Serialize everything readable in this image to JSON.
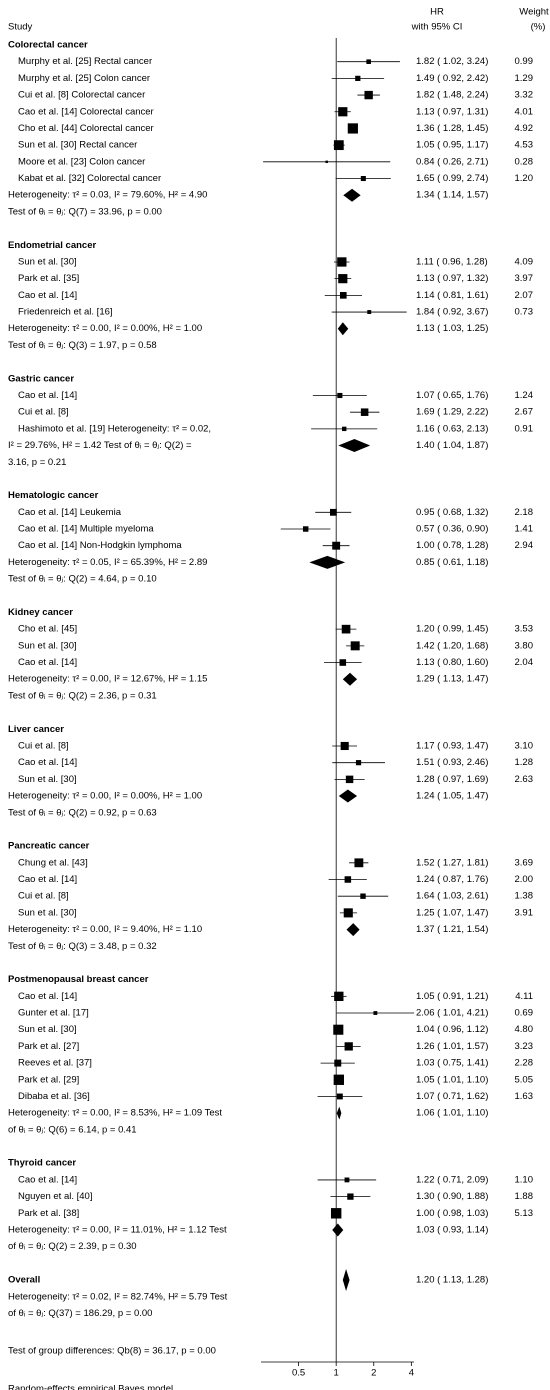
{
  "chart_data": {
    "type": "forest",
    "header": {
      "study": "Study",
      "estimate": [
        "HR",
        "with 95% CI"
      ],
      "weight": [
        "Weight",
        "(%)"
      ]
    },
    "xscale": "log",
    "xlim": [
      0.25,
      4.2
    ],
    "xticks": [
      0.5,
      1,
      2,
      4
    ],
    "reference_line": 1,
    "groups": [
      {
        "name": "Colorectal cancer",
        "studies": [
          {
            "study": "Murphy et al. [25] Rectal cancer",
            "hr": 1.82,
            "ci_low": 1.02,
            "ci_high": 3.24,
            "estimate": "1.82 ( 1.02, 3.24)",
            "weight": 0.99,
            "weight_label": "0.99"
          },
          {
            "study": "Murphy et al. [25] Colon cancer",
            "hr": 1.49,
            "ci_low": 0.92,
            "ci_high": 2.42,
            "estimate": "1.49 ( 0.92, 2.42)",
            "weight": 1.29,
            "weight_label": "1.29"
          },
          {
            "study": "Cui et al. [8] Colorectal cancer",
            "hr": 1.82,
            "ci_low": 1.48,
            "ci_high": 2.24,
            "estimate": "1.82 ( 1.48, 2.24)",
            "weight": 3.32,
            "weight_label": "3.32"
          },
          {
            "study": "Cao et al. [14] Colorectal cancer",
            "hr": 1.13,
            "ci_low": 0.97,
            "ci_high": 1.31,
            "estimate": "1.13 ( 0.97, 1.31)",
            "weight": 4.01,
            "weight_label": "4.01"
          },
          {
            "study": "Cho et al. [44] Colorectal cancer",
            "hr": 1.36,
            "ci_low": 1.28,
            "ci_high": 1.45,
            "estimate": "1.36 ( 1.28, 1.45)",
            "weight": 4.92,
            "weight_label": "4.92"
          },
          {
            "study": "Sun et al. [30] Rectal cancer",
            "hr": 1.05,
            "ci_low": 0.95,
            "ci_high": 1.17,
            "estimate": "1.05 ( 0.95, 1.17)",
            "weight": 4.53,
            "weight_label": "4.53"
          },
          {
            "study": "Moore et al. [23] Colon cancer",
            "hr": 0.84,
            "ci_low": 0.26,
            "ci_high": 2.71,
            "estimate": "0.84 ( 0.26, 2.71)",
            "weight": 0.28,
            "weight_label": "0.28"
          },
          {
            "study": "Kabat et al. [32] Colorectal cancer",
            "hr": 1.65,
            "ci_low": 0.99,
            "ci_high": 2.74,
            "estimate": "1.65 ( 0.99, 2.74)",
            "weight": 1.2,
            "weight_label": "1.20"
          }
        ],
        "pooled": {
          "hr": 1.34,
          "ci_low": 1.14,
          "ci_high": 1.57,
          "estimate": "1.34 ( 1.14, 1.57)"
        },
        "notes": [
          "Heterogeneity: τ² = 0.03, I² = 79.60%, H² = 4.90",
          "Test of θᵢ = θⱼ: Q(7) = 33.96, p = 0.00"
        ]
      },
      {
        "name": "Endometrial cancer",
        "studies": [
          {
            "study": "Sun et al. [30]",
            "hr": 1.11,
            "ci_low": 0.96,
            "ci_high": 1.28,
            "estimate": "1.11 ( 0.96, 1.28)",
            "weight": 4.09,
            "weight_label": "4.09"
          },
          {
            "study": "Park et al. [35]",
            "hr": 1.13,
            "ci_low": 0.97,
            "ci_high": 1.32,
            "estimate": "1.13 ( 0.97, 1.32)",
            "weight": 3.97,
            "weight_label": "3.97"
          },
          {
            "study": "Cao et al. [14]",
            "hr": 1.14,
            "ci_low": 0.81,
            "ci_high": 1.61,
            "estimate": "1.14 ( 0.81, 1.61)",
            "weight": 2.07,
            "weight_label": "2.07"
          },
          {
            "study": "Friedenreich et al. [16]",
            "hr": 1.84,
            "ci_low": 0.92,
            "ci_high": 3.67,
            "estimate": "1.84 ( 0.92, 3.67)",
            "weight": 0.73,
            "weight_label": "0.73"
          }
        ],
        "pooled": {
          "hr": 1.13,
          "ci_low": 1.03,
          "ci_high": 1.25,
          "estimate": "1.13 ( 1.03, 1.25)"
        },
        "notes": [
          "Heterogeneity: τ² = 0.00, I² = 0.00%, H² = 1.00",
          "Test of θᵢ = θⱼ: Q(3) = 1.97, p = 0.58"
        ]
      },
      {
        "name": "Gastric cancer",
        "studies": [
          {
            "study": "Cao et al. [14]",
            "hr": 1.07,
            "ci_low": 0.65,
            "ci_high": 1.76,
            "estimate": "1.07 ( 0.65, 1.76)",
            "weight": 1.24,
            "weight_label": "1.24"
          },
          {
            "study": "Cui et al. [8]",
            "hr": 1.69,
            "ci_low": 1.29,
            "ci_high": 2.22,
            "estimate": "1.69 ( 1.29, 2.22)",
            "weight": 2.67,
            "weight_label": "2.67"
          },
          {
            "study": "Hashimoto et al. [19]  Heterogeneity: τ² = 0.02,",
            "hr": 1.16,
            "ci_low": 0.63,
            "ci_high": 2.13,
            "estimate": "1.16 ( 0.63, 2.13)",
            "weight": 0.91,
            "weight_label": "0.91"
          }
        ],
        "pooled": {
          "hr": 1.4,
          "ci_low": 1.04,
          "ci_high": 1.87,
          "estimate": "1.40 ( 1.04, 1.87)"
        },
        "notes": [
          "I² = 29.76%, H² = 1.42 Test of θᵢ = θⱼ: Q(2) =",
          "3.16, p = 0.21"
        ]
      },
      {
        "name": "Hematologic cancer",
        "studies": [
          {
            "study": "Cao et al. [14] Leukemia",
            "hr": 0.95,
            "ci_low": 0.68,
            "ci_high": 1.32,
            "estimate": "0.95 ( 0.68, 1.32)",
            "weight": 2.18,
            "weight_label": "2.18"
          },
          {
            "study": "Cao et al. [14] Multiple myeloma",
            "hr": 0.57,
            "ci_low": 0.36,
            "ci_high": 0.9,
            "estimate": "0.57 ( 0.36, 0.90)",
            "weight": 1.41,
            "weight_label": "1.41"
          },
          {
            "study": "Cao et al. [14] Non-Hodgkin lymphoma",
            "hr": 1.0,
            "ci_low": 0.78,
            "ci_high": 1.28,
            "estimate": "1.00 ( 0.78, 1.28)",
            "weight": 2.94,
            "weight_label": "2.94"
          }
        ],
        "pooled": {
          "hr": 0.85,
          "ci_low": 0.61,
          "ci_high": 1.18,
          "estimate": "0.85 ( 0.61, 1.18)"
        },
        "notes": [
          "Heterogeneity: τ² = 0.05, I² = 65.39%, H² = 2.89",
          "Test of θᵢ = θⱼ: Q(2) = 4.64, p = 0.10"
        ]
      },
      {
        "name": "Kidney cancer",
        "studies": [
          {
            "study": "Cho et al. [45]",
            "hr": 1.2,
            "ci_low": 0.99,
            "ci_high": 1.45,
            "estimate": "1.20 ( 0.99, 1.45)",
            "weight": 3.53,
            "weight_label": "3.53"
          },
          {
            "study": "Sun et al. [30]",
            "hr": 1.42,
            "ci_low": 1.2,
            "ci_high": 1.68,
            "estimate": "1.42 ( 1.20, 1.68)",
            "weight": 3.8,
            "weight_label": "3.80"
          },
          {
            "study": "Cao et al. [14]",
            "hr": 1.13,
            "ci_low": 0.8,
            "ci_high": 1.6,
            "estimate": "1.13 ( 0.80, 1.60)",
            "weight": 2.04,
            "weight_label": "2.04"
          }
        ],
        "pooled": {
          "hr": 1.29,
          "ci_low": 1.13,
          "ci_high": 1.47,
          "estimate": "1.29 ( 1.13, 1.47)"
        },
        "notes": [
          "Heterogeneity: τ² = 0.00, I² = 12.67%, H² = 1.15",
          "Test of θᵢ = θⱼ: Q(2) = 2.36, p = 0.31"
        ]
      },
      {
        "name": "Liver cancer",
        "studies": [
          {
            "study": "Cui et al. [8]",
            "hr": 1.17,
            "ci_low": 0.93,
            "ci_high": 1.47,
            "estimate": "1.17 ( 0.93, 1.47)",
            "weight": 3.1,
            "weight_label": "3.10"
          },
          {
            "study": "Cao et al. [14]",
            "hr": 1.51,
            "ci_low": 0.93,
            "ci_high": 2.46,
            "estimate": "1.51 ( 0.93, 2.46)",
            "weight": 1.28,
            "weight_label": "1.28"
          },
          {
            "study": "Sun et al. [30]",
            "hr": 1.28,
            "ci_low": 0.97,
            "ci_high": 1.69,
            "estimate": "1.28 ( 0.97, 1.69)",
            "weight": 2.63,
            "weight_label": "2.63"
          }
        ],
        "pooled": {
          "hr": 1.24,
          "ci_low": 1.05,
          "ci_high": 1.47,
          "estimate": "1.24 ( 1.05, 1.47)"
        },
        "notes": [
          "Heterogeneity: τ² = 0.00, I² = 0.00%, H² = 1.00",
          "Test of θᵢ = θⱼ: Q(2) = 0.92, p = 0.63"
        ]
      },
      {
        "name": "Pancreatic cancer",
        "studies": [
          {
            "study": "Chung et al. [43]",
            "hr": 1.52,
            "ci_low": 1.27,
            "ci_high": 1.81,
            "estimate": "1.52 ( 1.27, 1.81)",
            "weight": 3.69,
            "weight_label": "3.69"
          },
          {
            "study": "Cao et al. [14]",
            "hr": 1.24,
            "ci_low": 0.87,
            "ci_high": 1.76,
            "estimate": "1.24 ( 0.87, 1.76)",
            "weight": 2.0,
            "weight_label": "2.00"
          },
          {
            "study": "Cui et al. [8]",
            "hr": 1.64,
            "ci_low": 1.03,
            "ci_high": 2.61,
            "estimate": "1.64 ( 1.03, 2.61)",
            "weight": 1.38,
            "weight_label": "1.38"
          },
          {
            "study": "Sun et al. [30]",
            "hr": 1.25,
            "ci_low": 1.07,
            "ci_high": 1.47,
            "estimate": "1.25 ( 1.07, 1.47)",
            "weight": 3.91,
            "weight_label": "3.91"
          }
        ],
        "pooled": {
          "hr": 1.37,
          "ci_low": 1.21,
          "ci_high": 1.54,
          "estimate": "1.37 ( 1.21, 1.54)"
        },
        "notes": [
          "Heterogeneity: τ² = 0.00, I² = 9.40%, H² = 1.10",
          "Test of θᵢ = θⱼ: Q(3) = 3.48, p = 0.32"
        ]
      },
      {
        "name": "Postmenopausal breast cancer",
        "studies": [
          {
            "study": "Cao et al. [14]",
            "hr": 1.05,
            "ci_low": 0.91,
            "ci_high": 1.21,
            "estimate": "1.05 ( 0.91, 1.21)",
            "weight": 4.11,
            "weight_label": "4.11"
          },
          {
            "study": "Gunter et al. [17]",
            "hr": 2.06,
            "ci_low": 1.01,
            "ci_high": 4.21,
            "estimate": "2.06 ( 1.01, 4.21)",
            "weight": 0.69,
            "weight_label": "0.69"
          },
          {
            "study": "Sun et al. [30]",
            "hr": 1.04,
            "ci_low": 0.96,
            "ci_high": 1.12,
            "estimate": "1.04 ( 0.96, 1.12)",
            "weight": 4.8,
            "weight_label": "4.80"
          },
          {
            "study": "Park et al. [27]",
            "hr": 1.26,
            "ci_low": 1.01,
            "ci_high": 1.57,
            "estimate": "1.26 ( 1.01, 1.57)",
            "weight": 3.23,
            "weight_label": "3.23"
          },
          {
            "study": "Reeves et al. [37]",
            "hr": 1.03,
            "ci_low": 0.75,
            "ci_high": 1.41,
            "estimate": "1.03 ( 0.75, 1.41)",
            "weight": 2.28,
            "weight_label": "2.28"
          },
          {
            "study": "Park et al. [29]",
            "hr": 1.05,
            "ci_low": 1.01,
            "ci_high": 1.1,
            "estimate": "1.05 ( 1.01, 1.10)",
            "weight": 5.05,
            "weight_label": "5.05"
          },
          {
            "study": "Dibaba et al. [36]",
            "hr": 1.07,
            "ci_low": 0.71,
            "ci_high": 1.62,
            "estimate": "1.07 ( 0.71, 1.62)",
            "weight": 1.63,
            "weight_label": "1.63"
          }
        ],
        "pooled": {
          "hr": 1.06,
          "ci_low": 1.01,
          "ci_high": 1.1,
          "estimate": "1.06 ( 1.01, 1.10)"
        },
        "notes": [
          "Heterogeneity: τ² = 0.00, I² = 8.53%, H² = 1.09 Test",
          "of θᵢ = θⱼ: Q(6) = 6.14, p = 0.41"
        ]
      },
      {
        "name": "Thyroid cancer",
        "studies": [
          {
            "study": "Cao et al. [14]",
            "hr": 1.22,
            "ci_low": 0.71,
            "ci_high": 2.09,
            "estimate": "1.22 ( 0.71, 2.09)",
            "weight": 1.1,
            "weight_label": "1.10"
          },
          {
            "study": "Nguyen et al. [40]",
            "hr": 1.3,
            "ci_low": 0.9,
            "ci_high": 1.88,
            "estimate": "1.30 ( 0.90, 1.88)",
            "weight": 1.88,
            "weight_label": "1.88"
          },
          {
            "study": "Park et al. [38]",
            "hr": 1.0,
            "ci_low": 0.98,
            "ci_high": 1.03,
            "estimate": "1.00 ( 0.98, 1.03)",
            "weight": 5.13,
            "weight_label": "5.13"
          }
        ],
        "pooled": {
          "hr": 1.03,
          "ci_low": 0.93,
          "ci_high": 1.14,
          "estimate": "1.03 ( 0.93, 1.14)"
        },
        "notes": [
          "Heterogeneity: τ² = 0.00, I² = 11.01%, H² = 1.12 Test",
          "of θᵢ = θⱼ: Q(2) = 2.39, p = 0.30"
        ]
      }
    ],
    "overall": {
      "name": "Overall",
      "hr": 1.2,
      "ci_low": 1.13,
      "ci_high": 1.28,
      "estimate": "1.20 ( 1.13, 1.28)",
      "notes": [
        "Heterogeneity: τ² = 0.02, I² = 82.74%, H² = 5.79 Test",
        "of θᵢ = θⱼ: Q(37) = 186.29, p = 0.00"
      ],
      "group_test": "Test of group differences: Qb(8) = 36.17, p = 0.00"
    },
    "footnote": "Random-effects empirical Bayes model"
  }
}
